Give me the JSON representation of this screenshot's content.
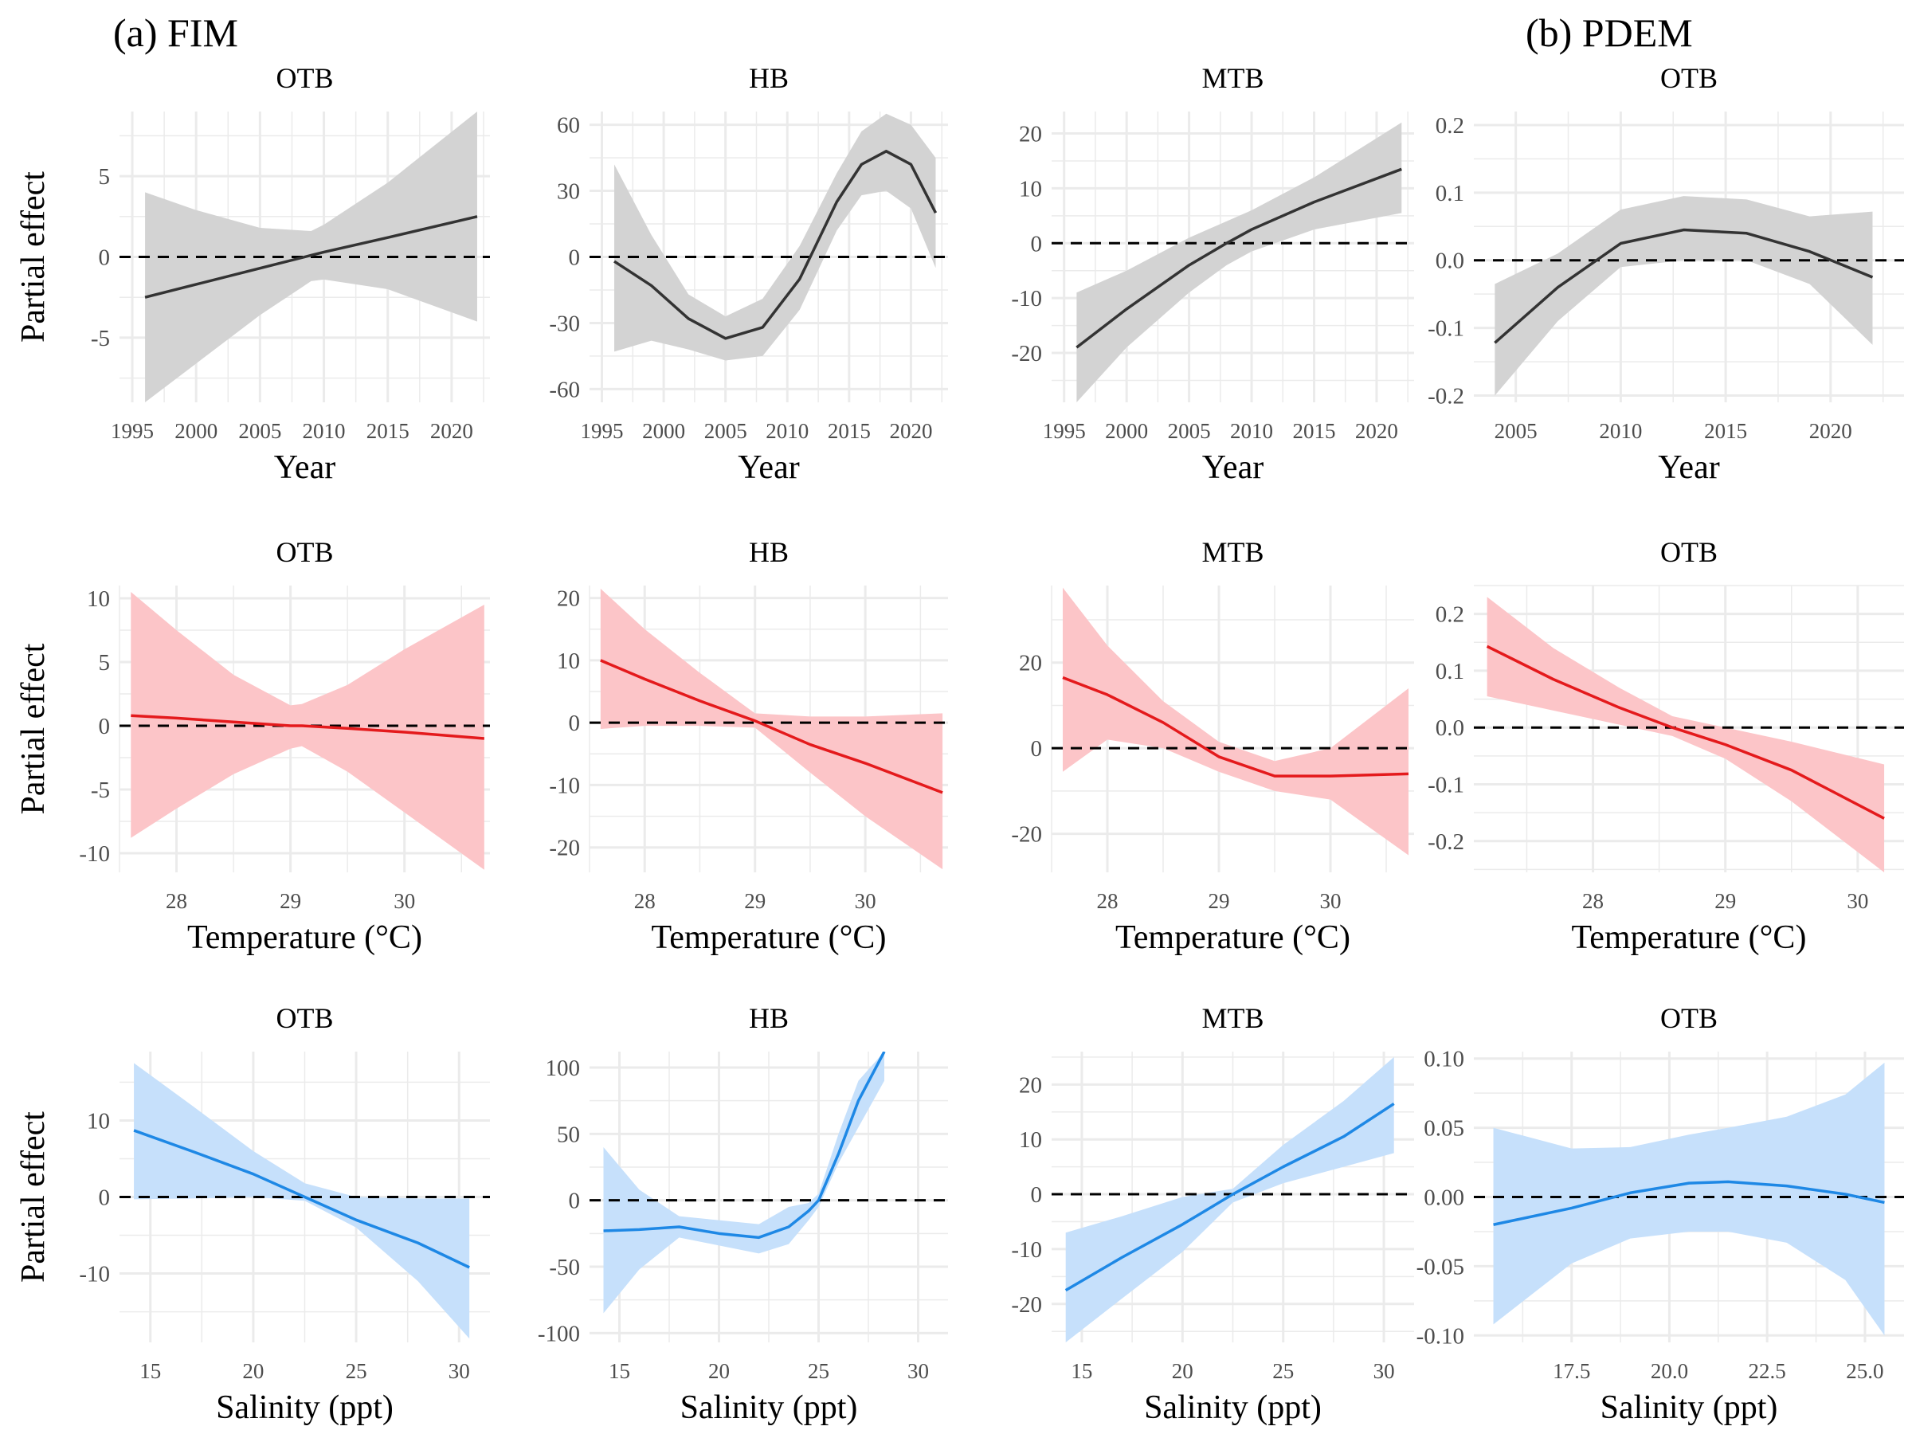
{
  "labels": {
    "a": "(a) FIM",
    "b": "(b) PDEM"
  },
  "colors": {
    "year": "#333333",
    "temperature": "#e41a1c",
    "salinity": "#1e88e5",
    "year_band": "#d3d3d3",
    "temperature_band": "#fcc5c8",
    "salinity_band": "#c6e0fb"
  },
  "chart_data": [
    {
      "type": "line",
      "row": 0,
      "col": 0,
      "panel_title": "OTB",
      "xlabel": "Year",
      "ylabel": "Partial effect",
      "xlim": [
        1994,
        2023
      ],
      "ylim": [
        -9,
        9
      ],
      "xticks": [
        1995,
        2000,
        2005,
        2010,
        2015,
        2020
      ],
      "xtick_labels": [
        "1995",
        "2000",
        "2005",
        "2010",
        "2015",
        "2020"
      ],
      "yticks": [
        -5,
        0,
        5
      ],
      "ytick_labels": [
        "-5",
        "0",
        "5"
      ],
      "x": [
        1996,
        2000,
        2005,
        2009,
        2010,
        2015,
        2022
      ],
      "y": [
        -2.5,
        -1.7,
        -0.7,
        0.1,
        0.3,
        1.2,
        2.5
      ],
      "lower": [
        -9,
        -6.6,
        -3.6,
        -1.5,
        -1.4,
        -2,
        -4
      ],
      "upper": [
        4,
        2.9,
        1.8,
        1.6,
        2,
        4.6,
        9
      ]
    },
    {
      "type": "line",
      "row": 0,
      "col": 1,
      "panel_title": "HB",
      "xlabel": "Year",
      "ylabel": "",
      "xlim": [
        1994,
        2023
      ],
      "ylim": [
        -66,
        66
      ],
      "xticks": [
        1995,
        2000,
        2005,
        2010,
        2015,
        2020
      ],
      "xtick_labels": [
        "1995",
        "2000",
        "2005",
        "2010",
        "2015",
        "2020"
      ],
      "yticks": [
        -60,
        -30,
        0,
        30,
        60
      ],
      "ytick_labels": [
        "-60",
        "-30",
        "0",
        "30",
        "60"
      ],
      "x": [
        1996,
        1999,
        2002,
        2005,
        2008,
        2011,
        2014,
        2016,
        2018,
        2020,
        2022
      ],
      "y": [
        -2,
        -13,
        -28,
        -37,
        -32,
        -10,
        25,
        42,
        48,
        42,
        20
      ],
      "lower": [
        -43,
        -38,
        -42,
        -47,
        -45,
        -24,
        12,
        28,
        30,
        22,
        -5
      ],
      "upper": [
        42,
        10,
        -17,
        -27,
        -19,
        5,
        38,
        57,
        65,
        60,
        45
      ]
    },
    {
      "type": "line",
      "row": 0,
      "col": 2,
      "panel_title": "MTB",
      "xlabel": "Year",
      "ylabel": "",
      "xlim": [
        1994,
        2023
      ],
      "ylim": [
        -29,
        24
      ],
      "xticks": [
        1995,
        2000,
        2005,
        2010,
        2015,
        2020
      ],
      "xtick_labels": [
        "1995",
        "2000",
        "2005",
        "2010",
        "2015",
        "2020"
      ],
      "yticks": [
        -20,
        -10,
        0,
        10,
        20
      ],
      "ytick_labels": [
        "-20",
        "-10",
        "0",
        "10",
        "20"
      ],
      "x": [
        1996,
        2000,
        2005,
        2008,
        2010,
        2015,
        2022
      ],
      "y": [
        -19,
        -12,
        -4,
        0,
        2.5,
        7.5,
        13.5
      ],
      "lower": [
        -29,
        -19,
        -9,
        -4,
        -1.5,
        2.5,
        5.5
      ],
      "upper": [
        -9,
        -5,
        1,
        4,
        6,
        12,
        22
      ]
    },
    {
      "type": "line",
      "row": 0,
      "col": 3,
      "panel_title": "OTB",
      "xlabel": "Year",
      "ylabel": "",
      "xlim": [
        2003,
        2023.5
      ],
      "ylim": [
        -0.21,
        0.22
      ],
      "xticks": [
        2005,
        2010,
        2015,
        2020
      ],
      "xtick_labels": [
        "2005",
        "2010",
        "2015",
        "2020"
      ],
      "yticks": [
        -0.2,
        -0.1,
        0,
        0.1,
        0.2
      ],
      "ytick_labels": [
        "-0.2",
        "-0.1",
        "0.0",
        "0.1",
        "0.2"
      ],
      "x": [
        2004,
        2007,
        2010,
        2013,
        2016,
        2019,
        2022
      ],
      "y": [
        -0.122,
        -0.04,
        0.025,
        0.045,
        0.04,
        0.013,
        -0.025
      ],
      "lower": [
        -0.2,
        -0.09,
        -0.01,
        0,
        0,
        -0.035,
        -0.125
      ],
      "upper": [
        -0.035,
        0.01,
        0.075,
        0.095,
        0.09,
        0.065,
        0.072
      ]
    },
    {
      "type": "line",
      "row": 1,
      "col": 0,
      "panel_title": "OTB",
      "xlabel": "Temperature (°C)",
      "ylabel": "Partial effect",
      "xlim": [
        27.5,
        30.75
      ],
      "ylim": [
        -11.5,
        11
      ],
      "xticks": [
        28,
        29,
        30
      ],
      "xtick_labels": [
        "28",
        "29",
        "30"
      ],
      "yticks": [
        -10,
        -5,
        0,
        5,
        10
      ],
      "ytick_labels": [
        "-10",
        "-5",
        "0",
        "5",
        "10"
      ],
      "x": [
        27.6,
        28,
        28.5,
        29,
        29.1,
        29.5,
        30,
        30.7
      ],
      "y": [
        0.8,
        0.6,
        0.3,
        0,
        0,
        -0.2,
        -0.5,
        -1
      ],
      "lower": [
        -8.8,
        -6.5,
        -3.8,
        -1.8,
        -1.6,
        -3.6,
        -6.8,
        -11.3
      ],
      "upper": [
        10.5,
        7.5,
        4,
        1.6,
        1.7,
        3.2,
        6,
        9.5
      ]
    },
    {
      "type": "line",
      "row": 1,
      "col": 1,
      "panel_title": "HB",
      "xlabel": "Temperature (°C)",
      "ylabel": "",
      "xlim": [
        27.5,
        30.75
      ],
      "ylim": [
        -24,
        22
      ],
      "xticks": [
        28,
        29,
        30
      ],
      "xtick_labels": [
        "28",
        "29",
        "30"
      ],
      "yticks": [
        -20,
        -10,
        0,
        10,
        20
      ],
      "ytick_labels": [
        "-20",
        "-10",
        "0",
        "10",
        "20"
      ],
      "x": [
        27.6,
        28,
        28.5,
        29,
        29.5,
        30,
        30.7
      ],
      "y": [
        10,
        7,
        3.5,
        0.3,
        -3.5,
        -6.5,
        -11.2
      ],
      "lower": [
        -1,
        -0.5,
        -0.5,
        -0.8,
        -8,
        -15,
        -23.5
      ],
      "upper": [
        21.5,
        15,
        8,
        1.5,
        1,
        1,
        1.5
      ]
    },
    {
      "type": "line",
      "row": 1,
      "col": 2,
      "panel_title": "MTB",
      "xlabel": "Temperature (°C)",
      "ylabel": "",
      "xlim": [
        27.5,
        30.75
      ],
      "ylim": [
        -29,
        38
      ],
      "xticks": [
        28,
        29,
        30
      ],
      "xtick_labels": [
        "28",
        "29",
        "30"
      ],
      "yticks": [
        -20,
        0,
        20
      ],
      "ytick_labels": [
        "-20",
        "0",
        "20"
      ],
      "x": [
        27.6,
        28,
        28.5,
        29,
        29.5,
        30,
        30.7
      ],
      "y": [
        16.5,
        12.5,
        6,
        -2,
        -6.5,
        -6.5,
        -6
      ],
      "lower": [
        -5.5,
        2,
        0,
        -5.5,
        -10,
        -12,
        -25
      ],
      "upper": [
        37.5,
        24,
        11,
        1.5,
        -3,
        0,
        14
      ]
    },
    {
      "type": "line",
      "row": 1,
      "col": 3,
      "panel_title": "OTB",
      "xlabel": "Temperature (°C)",
      "ylabel": "",
      "xlim": [
        27.1,
        30.35
      ],
      "ylim": [
        -0.255,
        0.25
      ],
      "xticks": [
        28,
        29,
        30
      ],
      "xtick_labels": [
        "28",
        "29",
        "30"
      ],
      "yticks": [
        -0.2,
        -0.1,
        0,
        0.1,
        0.2
      ],
      "ytick_labels": [
        "-0.2",
        "-0.1",
        "0.0",
        "0.1",
        "0.2"
      ],
      "x": [
        27.2,
        27.7,
        28.2,
        28.6,
        29,
        29.5,
        30.2
      ],
      "y": [
        0.143,
        0.085,
        0.035,
        0,
        -0.03,
        -0.075,
        -0.16
      ],
      "lower": [
        0.055,
        0.03,
        0.005,
        -0.015,
        -0.055,
        -0.13,
        -0.255
      ],
      "upper": [
        0.23,
        0.14,
        0.07,
        0.02,
        0,
        -0.025,
        -0.065
      ]
    },
    {
      "type": "line",
      "row": 2,
      "col": 0,
      "panel_title": "OTB",
      "xlabel": "Salinity (ppt)",
      "ylabel": "Partial effect",
      "xlim": [
        13.5,
        31.5
      ],
      "ylim": [
        -19,
        19
      ],
      "xticks": [
        15,
        20,
        25,
        30
      ],
      "xtick_labels": [
        "15",
        "20",
        "25",
        "30"
      ],
      "yticks": [
        -10,
        0,
        10
      ],
      "ytick_labels": [
        "-10",
        "0",
        "10"
      ],
      "x": [
        14.2,
        17,
        20,
        22.5,
        25,
        28,
        30.5
      ],
      "y": [
        8.7,
        6,
        3,
        0,
        -3,
        -6,
        -9.2
      ],
      "lower": [
        -0.3,
        -0.2,
        0,
        -0.5,
        -4,
        -11,
        -18.5
      ],
      "upper": [
        17.5,
        12,
        6,
        1.8,
        0,
        -0.2,
        -0.2
      ]
    },
    {
      "type": "line",
      "row": 2,
      "col": 1,
      "panel_title": "HB",
      "xlabel": "Salinity (ppt)",
      "ylabel": "",
      "xlim": [
        13.5,
        31.5
      ],
      "ylim": [
        -107,
        112
      ],
      "xticks": [
        15,
        20,
        25,
        30
      ],
      "xtick_labels": [
        "15",
        "20",
        "25",
        "30"
      ],
      "yticks": [
        -100,
        -50,
        0,
        50,
        100
      ],
      "ytick_labels": [
        "-100",
        "-50",
        "0",
        "50",
        "100"
      ],
      "x": [
        14.2,
        16,
        18,
        20,
        22,
        23.5,
        24.5,
        25,
        26,
        27,
        28.3
      ],
      "y": [
        -23,
        -22,
        -20,
        -25,
        -28,
        -20,
        -8,
        0,
        35,
        75,
        112
      ],
      "lower": [
        -85,
        -52,
        -28,
        -34,
        -40,
        -33,
        -15,
        -5,
        28,
        55,
        90
      ],
      "upper": [
        40,
        8,
        -12,
        -15,
        -18,
        -5,
        -2,
        5,
        50,
        90,
        112
      ]
    },
    {
      "type": "line",
      "row": 2,
      "col": 2,
      "panel_title": "MTB",
      "xlabel": "Salinity (ppt)",
      "ylabel": "",
      "xlim": [
        13.5,
        31.5
      ],
      "ylim": [
        -27,
        26
      ],
      "xticks": [
        15,
        20,
        25,
        30
      ],
      "xtick_labels": [
        "15",
        "20",
        "25",
        "30"
      ],
      "yticks": [
        -20,
        -10,
        0,
        10,
        20
      ],
      "ytick_labels": [
        "-20",
        "-10",
        "0",
        "10",
        "20"
      ],
      "x": [
        14.2,
        17,
        20,
        22.5,
        25,
        28,
        30.5
      ],
      "y": [
        -17.5,
        -11.5,
        -5.5,
        0,
        5,
        10.5,
        16.5
      ],
      "lower": [
        -27,
        -19,
        -10.5,
        -1.5,
        2,
        5,
        7.5
      ],
      "upper": [
        -7,
        -4,
        -0.5,
        1,
        9,
        17,
        25
      ]
    },
    {
      "type": "line",
      "row": 2,
      "col": 3,
      "panel_title": "OTB",
      "xlabel": "Salinity (ppt)",
      "ylabel": "",
      "xlim": [
        15,
        26
      ],
      "ylim": [
        -0.105,
        0.105
      ],
      "xticks": [
        17.5,
        20,
        22.5,
        25
      ],
      "xtick_labels": [
        "17.5",
        "20.0",
        "22.5",
        "25.0"
      ],
      "yticks": [
        -0.1,
        -0.05,
        0,
        0.05,
        0.1
      ],
      "ytick_labels": [
        "-0.10",
        "-0.05",
        "0.00",
        "0.05",
        "0.10"
      ],
      "x": [
        15.5,
        17.5,
        19,
        20.5,
        21.5,
        23,
        24.5,
        25.5
      ],
      "y": [
        -0.02,
        -0.008,
        0.003,
        0.01,
        0.011,
        0.008,
        0.002,
        -0.004
      ],
      "lower": [
        -0.092,
        -0.048,
        -0.03,
        -0.025,
        -0.025,
        -0.033,
        -0.06,
        -0.1
      ],
      "upper": [
        0.05,
        0.035,
        0.036,
        0.045,
        0.05,
        0.058,
        0.074,
        0.097
      ]
    }
  ]
}
